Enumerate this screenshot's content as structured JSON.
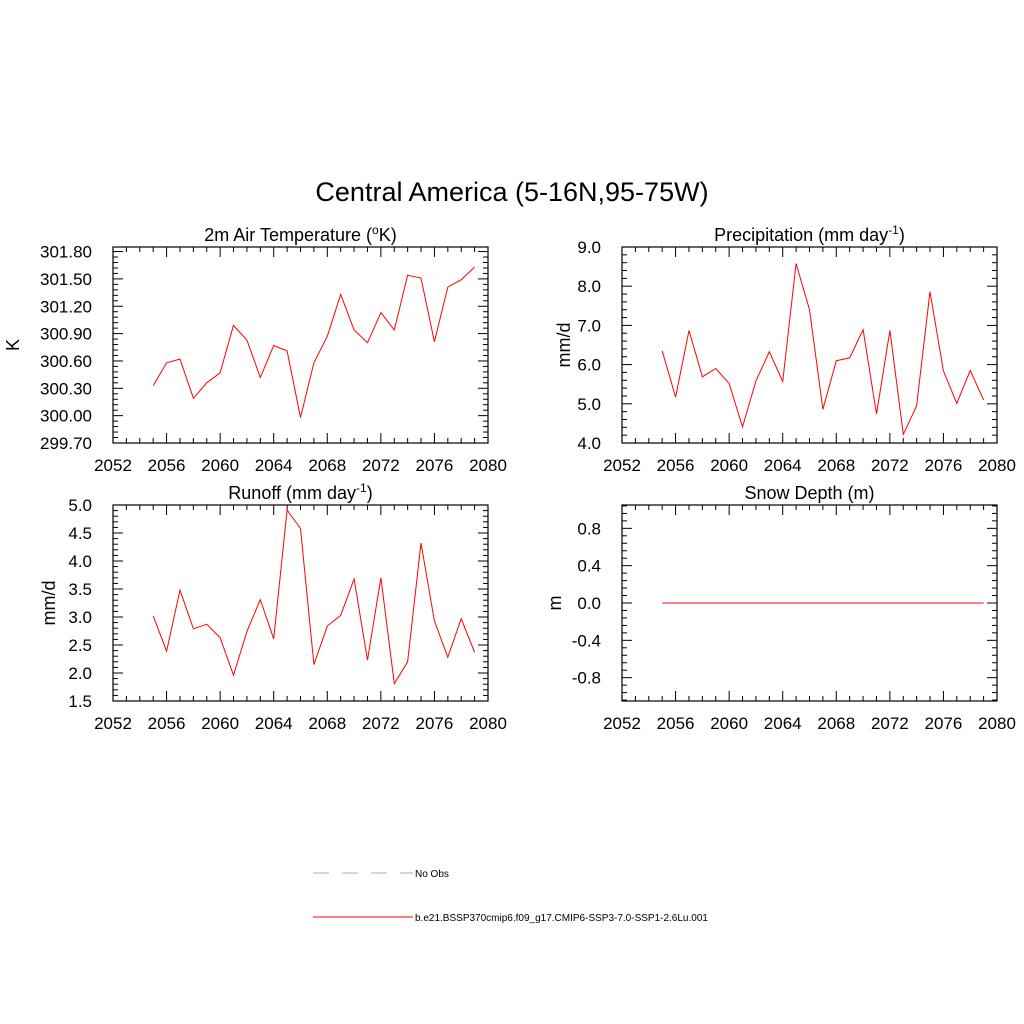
{
  "figure": {
    "title": "Central America (5-16N,95-75W)"
  },
  "legend": {
    "items": [
      {
        "label": "No Obs",
        "color": "#a8a8e0",
        "dashed": true
      },
      {
        "label": "b.e21.BSSP370cmip6.f09_g17.CMIP6-SSP3-7.0-SSP1-2.6Lu.001",
        "color": "#ff0000",
        "dashed": false
      }
    ]
  },
  "chart_data": [
    {
      "type": "line",
      "title": "2m Air Temperature (",
      "title_sup": "o",
      "title_after": "K)",
      "ylabel": "K",
      "xlim": [
        2052,
        2080
      ],
      "xticks": [
        2052,
        2056,
        2060,
        2064,
        2068,
        2072,
        2076,
        2080
      ],
      "ylim": [
        299.7,
        301.85
      ],
      "yticks": [
        299.7,
        300.0,
        300.3,
        300.6,
        300.9,
        301.2,
        301.5,
        301.8
      ],
      "ytick_labels": [
        "299.70",
        "300.00",
        "300.30",
        "300.60",
        "300.90",
        "301.20",
        "301.50",
        "301.80"
      ],
      "series": [
        {
          "color": "#ff0000",
          "x": [
            2055,
            2056,
            2057,
            2058,
            2059,
            2060,
            2061,
            2062,
            2063,
            2064,
            2065,
            2066,
            2067,
            2068,
            2069,
            2070,
            2071,
            2072,
            2073,
            2074,
            2075,
            2076,
            2077,
            2078,
            2079
          ],
          "y": [
            300.33,
            300.58,
            300.62,
            300.19,
            300.36,
            300.47,
            300.99,
            300.83,
            300.42,
            300.77,
            300.71,
            299.98,
            300.58,
            300.87,
            301.33,
            300.94,
            300.8,
            301.13,
            300.94,
            301.54,
            301.51,
            300.81,
            301.41,
            301.49,
            301.63
          ]
        }
      ]
    },
    {
      "type": "line",
      "title": "Precipitation (mm day",
      "title_sup": "-1",
      "title_after": ")",
      "ylabel": "mm/d",
      "xlim": [
        2052,
        2080
      ],
      "xticks": [
        2052,
        2056,
        2060,
        2064,
        2068,
        2072,
        2076,
        2080
      ],
      "ylim": [
        4.0,
        9.0
      ],
      "yticks": [
        4.0,
        5.0,
        6.0,
        7.0,
        8.0,
        9.0
      ],
      "ytick_labels": [
        "4.0",
        "5.0",
        "6.0",
        "7.0",
        "8.0",
        "9.0"
      ],
      "series": [
        {
          "color": "#ff0000",
          "x": [
            2055,
            2056,
            2057,
            2058,
            2059,
            2060,
            2061,
            2062,
            2063,
            2064,
            2065,
            2066,
            2067,
            2068,
            2069,
            2070,
            2071,
            2072,
            2073,
            2074,
            2075,
            2076,
            2077,
            2078,
            2079
          ],
          "y": [
            6.35,
            5.17,
            6.87,
            5.69,
            5.9,
            5.52,
            4.41,
            5.58,
            6.33,
            5.57,
            8.58,
            7.4,
            4.86,
            6.1,
            6.17,
            6.89,
            4.74,
            6.87,
            4.22,
            4.95,
            7.86,
            5.84,
            5.01,
            5.85,
            5.1
          ]
        }
      ]
    },
    {
      "type": "line",
      "title": "Runoff (mm day",
      "title_sup": "-1",
      "title_after": ")",
      "ylabel": "mm/d",
      "xlim": [
        2052,
        2080
      ],
      "xticks": [
        2052,
        2056,
        2060,
        2064,
        2068,
        2072,
        2076,
        2080
      ],
      "ylim": [
        1.5,
        5.0
      ],
      "yticks": [
        1.5,
        2.0,
        2.5,
        3.0,
        3.5,
        4.0,
        4.5,
        5.0
      ],
      "ytick_labels": [
        "1.5",
        "2.0",
        "2.5",
        "3.0",
        "3.5",
        "4.0",
        "4.5",
        "5.0"
      ],
      "series": [
        {
          "color": "#ff0000",
          "x": [
            2055,
            2056,
            2057,
            2058,
            2059,
            2060,
            2061,
            2062,
            2063,
            2064,
            2065,
            2066,
            2067,
            2068,
            2069,
            2070,
            2071,
            2072,
            2073,
            2074,
            2075,
            2076,
            2077,
            2078,
            2079
          ],
          "y": [
            3.02,
            2.39,
            3.48,
            2.79,
            2.87,
            2.63,
            1.96,
            2.74,
            3.31,
            2.61,
            4.91,
            4.58,
            2.15,
            2.84,
            3.03,
            3.68,
            2.23,
            3.7,
            1.81,
            2.2,
            4.32,
            2.93,
            2.28,
            2.97,
            2.37
          ]
        }
      ]
    },
    {
      "type": "line",
      "title": "Snow Depth (m)",
      "title_sup": "",
      "title_after": "",
      "ylabel": "m",
      "xlim": [
        2052,
        2080
      ],
      "xticks": [
        2052,
        2056,
        2060,
        2064,
        2068,
        2072,
        2076,
        2080
      ],
      "ylim": [
        -1.05,
        1.05
      ],
      "yticks": [
        -0.8,
        -0.4,
        0.0,
        0.4,
        0.8
      ],
      "ytick_labels": [
        "-0.8",
        "-0.4",
        "0.0",
        "0.4",
        "0.8"
      ],
      "series": [
        {
          "color": "#ff0000",
          "x": [
            2055,
            2079
          ],
          "y": [
            0.0,
            0.0
          ]
        }
      ]
    }
  ]
}
